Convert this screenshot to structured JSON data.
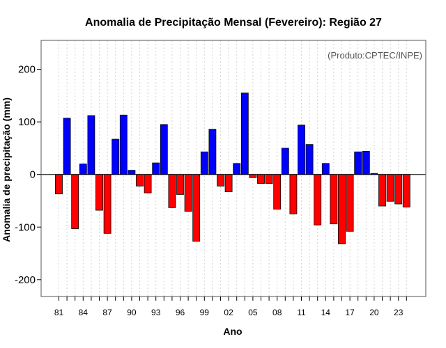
{
  "chart_data": {
    "type": "bar",
    "title": "Anomalia de Precipitação Mensal (Fevereiro): Região 27",
    "xlabel": "Ano",
    "ylabel": "Anomalia de precipitação (mm)",
    "credit": "(Produto:CPTEC/INPE)",
    "ylim": [
      -232,
      255
    ],
    "yticks": [
      -200,
      -100,
      0,
      100,
      200
    ],
    "xtick_labels": [
      {
        "index": 0,
        "label": "81"
      },
      {
        "index": 3,
        "label": "84"
      },
      {
        "index": 6,
        "label": "87"
      },
      {
        "index": 9,
        "label": "90"
      },
      {
        "index": 12,
        "label": "93"
      },
      {
        "index": 15,
        "label": "96"
      },
      {
        "index": 18,
        "label": "99"
      },
      {
        "index": 21,
        "label": "02"
      },
      {
        "index": 24,
        "label": "05"
      },
      {
        "index": 27,
        "label": "08"
      },
      {
        "index": 30,
        "label": "11"
      },
      {
        "index": 33,
        "label": "14"
      },
      {
        "index": 36,
        "label": "17"
      },
      {
        "index": 39,
        "label": "20"
      },
      {
        "index": 42,
        "label": "23"
      }
    ],
    "categories": [
      "1981",
      "1982",
      "1983",
      "1984",
      "1985",
      "1986",
      "1987",
      "1988",
      "1989",
      "1990",
      "1991",
      "1992",
      "1993",
      "1994",
      "1995",
      "1996",
      "1997",
      "1998",
      "1999",
      "2000",
      "2001",
      "2002",
      "2003",
      "2004",
      "2005",
      "2006",
      "2007",
      "2008",
      "2009",
      "2010",
      "2011",
      "2012",
      "2013",
      "2014",
      "2015",
      "2016",
      "2017",
      "2018",
      "2019",
      "2020",
      "2021",
      "2022",
      "2023",
      "2024"
    ],
    "values": [
      -37,
      107,
      -103,
      20,
      112,
      -68,
      -112,
      67,
      113,
      8,
      -22,
      -35,
      22,
      95,
      -63,
      -38,
      -70,
      -127,
      43,
      86,
      -22,
      -33,
      21,
      155,
      -6,
      -17,
      -17,
      -66,
      50,
      -75,
      94,
      57,
      -96,
      21,
      -94,
      -132,
      -108,
      43,
      44,
      2,
      -60,
      -51,
      -56,
      -62
    ],
    "colors": {
      "positive": "#0000ff",
      "negative": "#ff0000"
    }
  }
}
